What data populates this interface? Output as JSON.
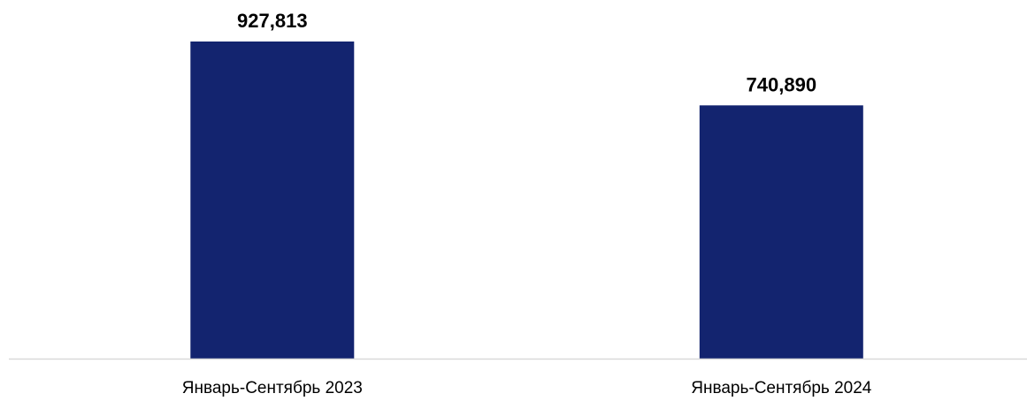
{
  "chart_data": {
    "type": "bar",
    "categories": [
      "Январь-Сентябрь 2023",
      "Январь-Сентябрь 2024"
    ],
    "values": [
      927813,
      740890
    ],
    "data_labels": [
      "927,813",
      "740,890"
    ],
    "title": "",
    "xlabel": "",
    "ylabel": "",
    "ylim": [
      0,
      1000000
    ],
    "grid": false,
    "legend": "none",
    "colors": {
      "bar": "#13246F",
      "axis": "#D9D9D9"
    }
  }
}
